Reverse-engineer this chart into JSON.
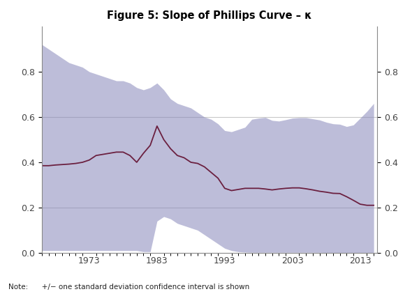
{
  "title": "Figure 5: Slope of Phillips Curve – κ",
  "note": "Note:      +/− one standard deviation confidence interval is shown",
  "xlim": [
    1966,
    2015.5
  ],
  "ylim": [
    0.0,
    1.0
  ],
  "yticks": [
    0.0,
    0.2,
    0.4,
    0.6,
    0.8
  ],
  "xtick_labels": [
    "1973",
    "1983",
    "1993",
    "2003",
    "2013"
  ],
  "xtick_positions": [
    1973,
    1983,
    1993,
    2003,
    2013
  ],
  "grid_color": "#c8c8c8",
  "grid_yticks": [
    0.2,
    0.6
  ],
  "fill_color": "#8888bb",
  "fill_alpha": 0.55,
  "line_color": "#6b2040",
  "line_width": 1.3,
  "background_color": "#ffffff",
  "years": [
    1966,
    1967,
    1968,
    1969,
    1970,
    1971,
    1972,
    1973,
    1974,
    1975,
    1976,
    1977,
    1978,
    1979,
    1980,
    1981,
    1982,
    1983,
    1984,
    1985,
    1986,
    1987,
    1988,
    1989,
    1990,
    1991,
    1992,
    1993,
    1994,
    1995,
    1996,
    1997,
    1998,
    1999,
    2000,
    2001,
    2002,
    2003,
    2004,
    2005,
    2006,
    2007,
    2008,
    2009,
    2010,
    2011,
    2012,
    2013,
    2014,
    2015
  ],
  "kappa": [
    0.385,
    0.385,
    0.388,
    0.39,
    0.392,
    0.395,
    0.4,
    0.41,
    0.43,
    0.435,
    0.44,
    0.445,
    0.445,
    0.43,
    0.4,
    0.44,
    0.475,
    0.56,
    0.5,
    0.46,
    0.43,
    0.42,
    0.4,
    0.395,
    0.38,
    0.355,
    0.33,
    0.285,
    0.275,
    0.28,
    0.285,
    0.285,
    0.285,
    0.282,
    0.278,
    0.282,
    0.285,
    0.287,
    0.287,
    0.283,
    0.278,
    0.272,
    0.268,
    0.263,
    0.262,
    0.248,
    0.232,
    0.215,
    0.21,
    0.21
  ],
  "upper": [
    0.92,
    0.9,
    0.88,
    0.86,
    0.84,
    0.83,
    0.82,
    0.8,
    0.79,
    0.78,
    0.77,
    0.76,
    0.76,
    0.75,
    0.73,
    0.72,
    0.73,
    0.75,
    0.72,
    0.68,
    0.66,
    0.65,
    0.64,
    0.62,
    0.6,
    0.59,
    0.57,
    0.54,
    0.535,
    0.545,
    0.555,
    0.59,
    0.595,
    0.598,
    0.585,
    0.582,
    0.588,
    0.595,
    0.597,
    0.597,
    0.592,
    0.587,
    0.577,
    0.57,
    0.568,
    0.558,
    0.565,
    0.595,
    0.625,
    0.66
  ],
  "lower": [
    0.01,
    0.01,
    0.01,
    0.01,
    0.01,
    0.01,
    0.01,
    0.01,
    0.01,
    0.01,
    0.01,
    0.01,
    0.01,
    0.01,
    0.01,
    0.005,
    0.005,
    0.14,
    0.16,
    0.15,
    0.13,
    0.12,
    0.11,
    0.1,
    0.08,
    0.06,
    0.04,
    0.02,
    0.01,
    0.005,
    0.003,
    0.002,
    0.002,
    0.002,
    0.002,
    0.002,
    0.002,
    0.002,
    0.002,
    0.002,
    0.002,
    0.002,
    0.001,
    0.001,
    0.001,
    0.001,
    0.001,
    0.001,
    0.001,
    0.001
  ]
}
